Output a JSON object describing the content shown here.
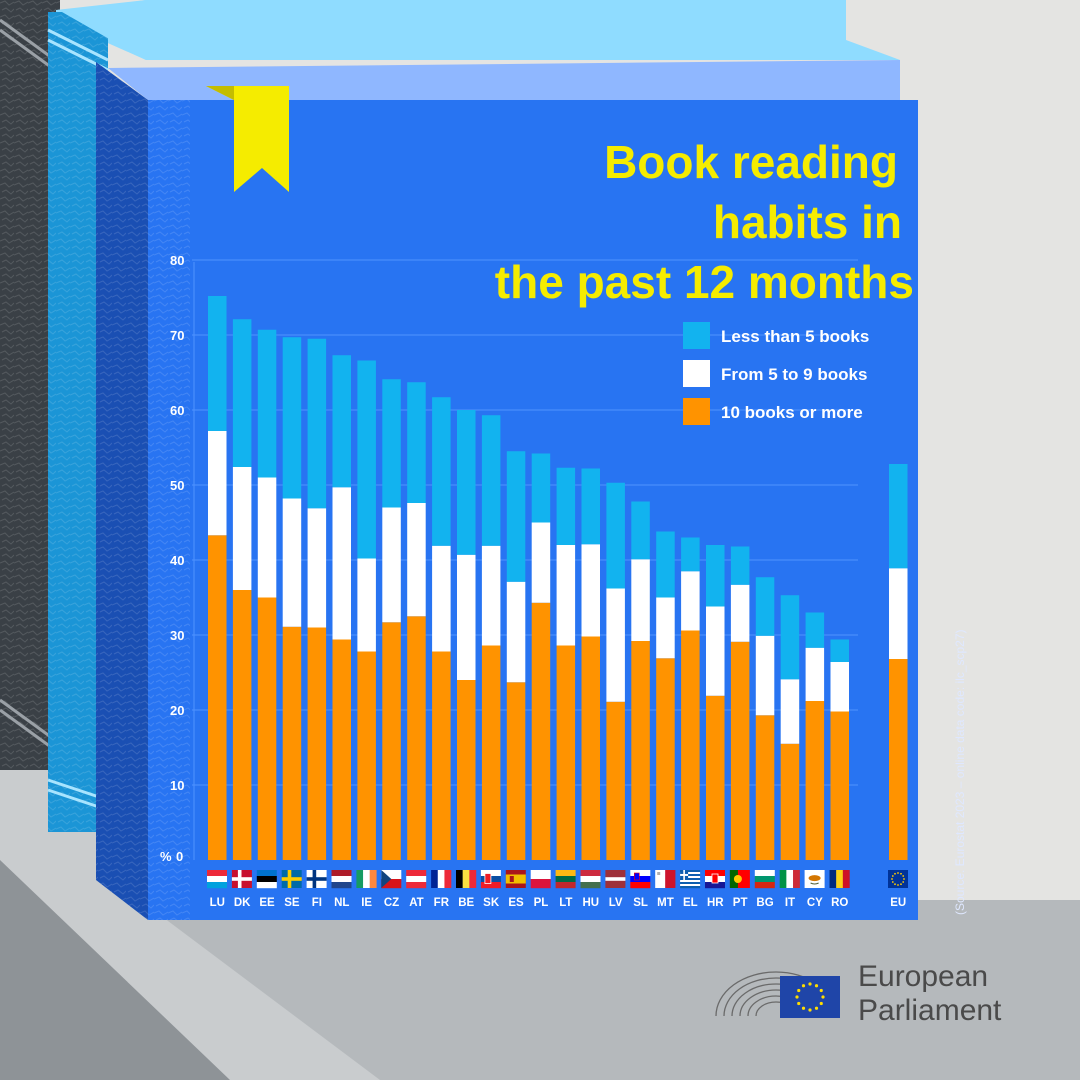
{
  "chart_data": {
    "type": "bar",
    "stacked": true,
    "title_lines": [
      "Book reading",
      "habits in",
      "the past 12 months"
    ],
    "y_axis_unit": "%",
    "ylim": [
      0,
      80
    ],
    "y_ticks": [
      0,
      10,
      20,
      30,
      40,
      50,
      60,
      70,
      80
    ],
    "grid": true,
    "legend_position": "top-right",
    "categories": [
      "LU",
      "DK",
      "EE",
      "SE",
      "FI",
      "NL",
      "IE",
      "CZ",
      "AT",
      "FR",
      "BE",
      "SK",
      "ES",
      "PL",
      "LT",
      "HU",
      "LV",
      "SL",
      "MT",
      "EL",
      "HR",
      "PT",
      "BG",
      "IT",
      "CY",
      "RO",
      "EU"
    ],
    "series": [
      {
        "name": "10 books or more",
        "color": "#ff9300",
        "values": [
          43.3,
          36.0,
          35.0,
          31.1,
          31.0,
          29.4,
          27.8,
          31.7,
          32.5,
          27.8,
          24.0,
          28.6,
          23.7,
          34.3,
          28.6,
          29.8,
          21.1,
          29.2,
          26.9,
          30.6,
          21.9,
          29.1,
          19.3,
          15.5,
          21.2,
          19.8,
          26.8
        ]
      },
      {
        "name": "From 5 to 9 books",
        "color": "#ffffff",
        "values": [
          13.9,
          16.4,
          16.0,
          17.1,
          15.9,
          20.3,
          12.4,
          15.3,
          15.1,
          14.1,
          16.7,
          13.3,
          13.4,
          10.7,
          13.4,
          12.3,
          15.1,
          10.9,
          8.1,
          7.9,
          11.9,
          7.6,
          10.6,
          8.6,
          7.1,
          6.6,
          12.1
        ]
      },
      {
        "name": "Less than 5 books",
        "color": "#12b3ef",
        "values": [
          18.0,
          19.7,
          19.7,
          21.5,
          22.6,
          17.6,
          26.4,
          17.1,
          16.1,
          19.8,
          19.3,
          17.4,
          17.4,
          9.2,
          10.3,
          10.1,
          14.1,
          7.7,
          8.8,
          4.5,
          8.2,
          5.1,
          7.8,
          11.2,
          4.7,
          3.0,
          13.9
        ]
      }
    ]
  },
  "flags": [
    "luxembourg-flag",
    "denmark-flag",
    "estonia-flag",
    "sweden-flag",
    "finland-flag",
    "netherlands-flag",
    "ireland-flag",
    "czechia-flag",
    "austria-flag",
    "france-flag",
    "belgium-flag",
    "slovakia-flag",
    "spain-flag",
    "poland-flag",
    "lithuania-flag",
    "hungary-flag",
    "latvia-flag",
    "slovenia-flag",
    "malta-flag",
    "greece-flag",
    "croatia-flag",
    "portugal-flag",
    "bulgaria-flag",
    "italy-flag",
    "cyprus-flag",
    "romania-flag",
    "eu-flag"
  ],
  "source": "(Source: Eurostat 2023 – online data code: ilc_scp27)",
  "logo": {
    "line1": "European",
    "line2": "Parliament",
    "icon": "european-parliament-logo"
  },
  "colors": {
    "background": "#e4e4e2",
    "cover": "#2874f2",
    "title": "#f5ec00",
    "bookmark": "#f5ec00"
  }
}
